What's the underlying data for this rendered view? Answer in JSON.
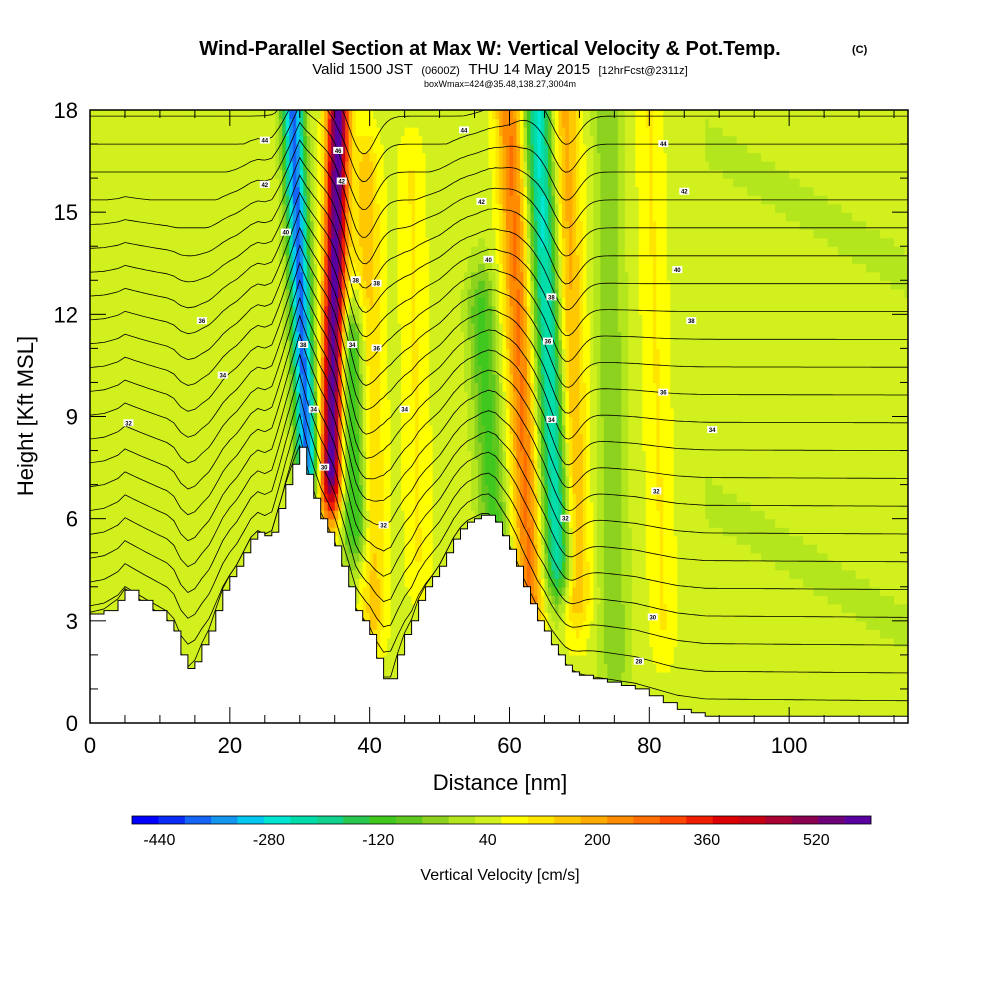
{
  "chart_data": {
    "type": "heatmap",
    "title": "Wind-Parallel Section at Max W: Vertical Velocity & Pot.Temp.",
    "title_mark": "(C)",
    "subtitle_main": "Valid 1500 JST",
    "subtitle_utc": "(0600Z)",
    "subtitle_date": "THU 14 May 2015",
    "subtitle_fcst": "[12hrFcst@2311z]",
    "subtitle_box": "boxWmax=424@35.48,138.27,3004m",
    "xlabel": "Distance [nm]",
    "ylabel": "Height [Kft MSL]",
    "xlim": [
      0,
      117
    ],
    "ylim": [
      0,
      18
    ],
    "x_ticks": [
      "0",
      "20",
      "40",
      "60",
      "80",
      "100"
    ],
    "x_tick_values": [
      0,
      20,
      40,
      60,
      80,
      100
    ],
    "y_ticks": [
      "0",
      "3",
      "6",
      "9",
      "12",
      "15",
      "18"
    ],
    "y_tick_values": [
      0,
      3,
      6,
      9,
      12,
      15,
      18
    ],
    "colorbar": {
      "label": "Vertical Velocity [cm/s]",
      "ticks": [
        "-440",
        "-280",
        "-120",
        "40",
        "200",
        "360",
        "520"
      ],
      "tick_values": [
        -440,
        -280,
        -120,
        40,
        200,
        360,
        520
      ],
      "min": -480,
      "max": 600,
      "colors": [
        "#0000ff",
        "#0a2af5",
        "#1464f5",
        "#1496f0",
        "#00c8f0",
        "#00e6d2",
        "#00dcaa",
        "#10d28c",
        "#28c850",
        "#40c81e",
        "#5fc81e",
        "#8cd21e",
        "#b4e61e",
        "#d2f01e",
        "#ffff00",
        "#ffe600",
        "#ffc800",
        "#ffaa00",
        "#ff8c00",
        "#ff6e00",
        "#ff4600",
        "#f01e00",
        "#dc0000",
        "#c80014",
        "#aa0032",
        "#8c0050",
        "#6e0078",
        "#5a00a0"
      ]
    },
    "updrafts": [
      {
        "x": 35,
        "w": 560,
        "xbottom": 34.5,
        "ybottom": 7.5,
        "xtop": 35.5,
        "ytop": 18
      },
      {
        "x": 41,
        "w": 120,
        "xbottom": 40.5,
        "ybottom": 3.5,
        "xtop": 39.5,
        "ytop": 16
      },
      {
        "x": 62,
        "w": 220,
        "xbottom": 63,
        "ybottom": 3.5,
        "xtop": 60,
        "ytop": 18
      },
      {
        "x": 71,
        "w": 150,
        "xbottom": 69.5,
        "ybottom": 4,
        "xtop": 68,
        "ytop": 18
      },
      {
        "x": 47,
        "w": 60,
        "xbottom": 47,
        "ybottom": 5,
        "xtop": 46,
        "ytop": 16
      },
      {
        "x": 82,
        "w": 60,
        "xbottom": 82,
        "ybottom": 3,
        "xtop": 80,
        "ytop": 18
      }
    ],
    "downdrafts": [
      {
        "x": 31,
        "w": -420,
        "xbottom": 31,
        "ybottom": 8,
        "xtop": 29,
        "ytop": 18
      },
      {
        "x": 66,
        "w": -300,
        "xbottom": 67,
        "ybottom": 5,
        "xtop": 64,
        "ytop": 18
      },
      {
        "x": 38,
        "w": -200,
        "xbottom": 38,
        "ybottom": 6,
        "xtop": 37.5,
        "ytop": 11
      },
      {
        "x": 57,
        "w": -150,
        "xbottom": 58,
        "ybottom": 5,
        "xtop": 56,
        "ytop": 12
      },
      {
        "x": 75,
        "w": -90,
        "xbottom": 75,
        "ybottom": 2,
        "xtop": 74,
        "ytop": 18
      }
    ],
    "terrain": {
      "x": [
        0,
        2,
        4,
        5,
        7,
        9,
        11,
        12,
        13,
        14,
        15,
        16,
        17,
        18,
        19,
        20,
        21,
        22,
        23,
        24,
        25,
        26,
        27,
        28,
        29,
        30,
        31,
        32,
        33,
        34,
        35,
        36,
        37,
        38,
        39,
        40,
        41,
        42,
        43,
        44,
        45,
        46,
        47,
        48,
        49,
        50,
        51,
        52,
        53,
        54,
        55,
        56,
        57,
        58,
        59,
        60,
        61,
        62,
        63,
        64,
        65,
        66,
        67,
        68,
        69,
        70,
        72,
        74,
        76,
        78,
        80,
        82,
        84,
        86,
        88,
        117
      ],
      "kft": [
        3.2,
        3.3,
        3.6,
        3.9,
        3.6,
        3.3,
        3.0,
        2.7,
        2.0,
        1.6,
        1.8,
        2.3,
        2.7,
        3.3,
        3.9,
        4.3,
        4.6,
        5.0,
        5.4,
        5.6,
        5.5,
        5.6,
        6.3,
        7.0,
        7.6,
        8.1,
        7.3,
        6.6,
        6.0,
        5.6,
        5.2,
        4.6,
        4.0,
        3.3,
        3.0,
        2.6,
        1.9,
        1.3,
        1.3,
        2.0,
        2.6,
        3.0,
        3.6,
        4.0,
        4.3,
        4.6,
        5.0,
        5.4,
        5.7,
        5.9,
        6.0,
        6.1,
        6.1,
        5.9,
        5.5,
        5.1,
        4.6,
        4.0,
        3.5,
        3.0,
        2.7,
        2.3,
        2.0,
        1.7,
        1.5,
        1.4,
        1.3,
        1.2,
        1.1,
        1.0,
        0.8,
        0.6,
        0.4,
        0.3,
        0.2,
        0.1
      ]
    },
    "isentropes": {
      "count": 22,
      "labels": [
        {
          "text": "44",
          "x": 25,
          "y": 17.1
        },
        {
          "text": "42",
          "x": 25,
          "y": 15.8
        },
        {
          "text": "40",
          "x": 28,
          "y": 14.4
        },
        {
          "text": "36",
          "x": 16,
          "y": 11.8
        },
        {
          "text": "34",
          "x": 19,
          "y": 10.2
        },
        {
          "text": "32",
          "x": 5.5,
          "y": 8.8
        },
        {
          "text": "46",
          "x": 35.5,
          "y": 16.8
        },
        {
          "text": "42",
          "x": 36,
          "y": 15.9
        },
        {
          "text": "38",
          "x": 41,
          "y": 12.9
        },
        {
          "text": "36",
          "x": 41,
          "y": 11.0
        },
        {
          "text": "34",
          "x": 45,
          "y": 9.2
        },
        {
          "text": "32",
          "x": 42,
          "y": 5.8
        },
        {
          "text": "44",
          "x": 53.5,
          "y": 17.4
        },
        {
          "text": "42",
          "x": 56,
          "y": 15.3
        },
        {
          "text": "40",
          "x": 57,
          "y": 13.6
        },
        {
          "text": "38",
          "x": 66,
          "y": 12.5
        },
        {
          "text": "36",
          "x": 65.5,
          "y": 11.2
        },
        {
          "text": "34",
          "x": 66,
          "y": 8.9
        },
        {
          "text": "32",
          "x": 68,
          "y": 6.0
        },
        {
          "text": "44",
          "x": 82,
          "y": 17.0
        },
        {
          "text": "42",
          "x": 85,
          "y": 15.6
        },
        {
          "text": "40",
          "x": 84,
          "y": 13.3
        },
        {
          "text": "38",
          "x": 86,
          "y": 11.8
        },
        {
          "text": "36",
          "x": 82,
          "y": 9.7
        },
        {
          "text": "34",
          "x": 89,
          "y": 8.6
        },
        {
          "text": "32",
          "x": 81,
          "y": 6.8
        },
        {
          "text": "30",
          "x": 80.5,
          "y": 3.1
        },
        {
          "text": "28",
          "x": 78.5,
          "y": 1.8
        },
        {
          "text": "38",
          "x": 30.5,
          "y": 11.1
        },
        {
          "text": "34",
          "x": 32,
          "y": 9.2
        },
        {
          "text": "30",
          "x": 33.5,
          "y": 7.5
        },
        {
          "text": "38",
          "x": 38,
          "y": 13.0
        },
        {
          "text": "34",
          "x": 37.5,
          "y": 11.1
        }
      ]
    }
  }
}
